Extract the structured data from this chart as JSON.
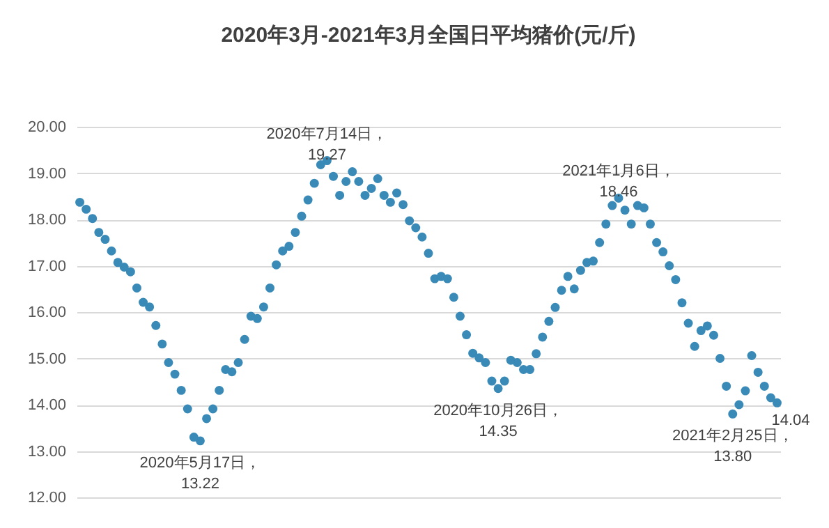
{
  "chart_data": {
    "type": "scatter",
    "title": "2020年3月-2021年3月全国日平均猪价(元/斤)",
    "categories": [
      null,
      null,
      null,
      null,
      null,
      null,
      null,
      null,
      null,
      null,
      null,
      null,
      null,
      null,
      null,
      null,
      null,
      null,
      null,
      null,
      null,
      null,
      null,
      null,
      null,
      null,
      null,
      null,
      null,
      null,
      null,
      null,
      null,
      null,
      null,
      null,
      null,
      null,
      null,
      null,
      null,
      null,
      null,
      null,
      null,
      null,
      null,
      null,
      null,
      null,
      null,
      null,
      null,
      null,
      null,
      null,
      null,
      null,
      null,
      null,
      null,
      null,
      null,
      null,
      null,
      null,
      null,
      null,
      null,
      null,
      null,
      null,
      null,
      null,
      null,
      null,
      null,
      null,
      null,
      null,
      null,
      null,
      null,
      null,
      null,
      null,
      null,
      null,
      null,
      null,
      null,
      null,
      null,
      null,
      null,
      null,
      null,
      null,
      null,
      null,
      null,
      null,
      null,
      null,
      null,
      null,
      null,
      null,
      null,
      null,
      null
    ],
    "series": [
      {
        "color": "#3a8ab8",
        "values": [
          18.37,
          18.22,
          18.02,
          17.72,
          17.57,
          17.32,
          17.07,
          16.97,
          16.87,
          16.52,
          16.21,
          16.11,
          15.71,
          15.31,
          14.91,
          14.66,
          14.31,
          13.91,
          13.3,
          13.22,
          13.7,
          13.91,
          14.31,
          14.76,
          14.71,
          14.91,
          15.41,
          15.91,
          15.86,
          16.11,
          16.52,
          17.02,
          17.32,
          17.42,
          17.72,
          18.07,
          18.42,
          18.78,
          19.18,
          19.27,
          18.93,
          18.52,
          18.82,
          19.03,
          18.82,
          18.52,
          18.67,
          18.88,
          18.52,
          18.37,
          18.57,
          18.32,
          17.97,
          17.82,
          17.62,
          17.27,
          16.72,
          16.77,
          16.72,
          16.32,
          15.91,
          15.51,
          15.11,
          15.01,
          14.91,
          14.51,
          14.35,
          14.51,
          14.96,
          14.91,
          14.76,
          14.76,
          15.1,
          15.46,
          15.8,
          16.1,
          16.47,
          16.77,
          16.5,
          16.9,
          17.07,
          17.1,
          17.5,
          17.9,
          18.3,
          18.46,
          18.2,
          17.9,
          18.3,
          18.25,
          17.9,
          17.5,
          17.3,
          17.0,
          16.7,
          16.2,
          15.76,
          15.26,
          15.6,
          15.7,
          15.5,
          15.0,
          14.4,
          13.8,
          14.0,
          14.3,
          15.06,
          14.7,
          14.4,
          14.15,
          14.04
        ]
      }
    ],
    "ylim": [
      12,
      20
    ],
    "yticks": [
      {
        "value": 12,
        "label": "12.00"
      },
      {
        "value": 13,
        "label": "13.00"
      },
      {
        "value": 14,
        "label": "14.00"
      },
      {
        "value": 15,
        "label": "15.00"
      },
      {
        "value": 16,
        "label": "16.00"
      },
      {
        "value": 17,
        "label": "17.00"
      },
      {
        "value": 18,
        "label": "18.00"
      },
      {
        "value": 19,
        "label": "19.00"
      },
      {
        "value": 20,
        "label": "20.00"
      }
    ],
    "tick_labels": "y",
    "grid": "y",
    "marker": "circle",
    "annotations": [
      {
        "text": "2020年5月17日，\n13.22",
        "y": 13.22
      },
      {
        "text": "2020年7月14日，\n19.27",
        "y": 19.27
      },
      {
        "text": "2020年10月26日，\n14.35",
        "y": 14.35
      },
      {
        "text": "2021年1月6日，\n18.46",
        "y": 18.46
      },
      {
        "text": "2021年2月25日，\n13.80",
        "y": 13.8
      },
      "14.04"
    ]
  }
}
